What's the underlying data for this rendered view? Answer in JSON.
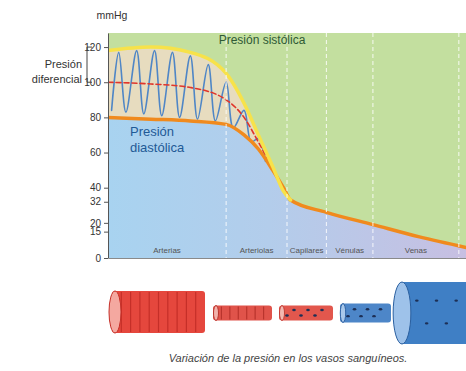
{
  "chart_data": {
    "type": "area",
    "title": "Variación de la presión en los vasos sanguíneos.",
    "y_label": "mmHg",
    "x": [
      0,
      12,
      23,
      33,
      38,
      42,
      46,
      49,
      51,
      61,
      74,
      87,
      100
    ],
    "xlim": [
      0,
      100
    ],
    "ylim": [
      0,
      128
    ],
    "yticks": [
      0,
      15,
      20,
      32,
      40,
      60,
      80,
      100,
      120
    ],
    "tick_labels": "y",
    "series": [
      {
        "name": "Presión sistólica",
        "color": "#f7e24a",
        "values": [
          118,
          120,
          117,
          105,
          88,
          70,
          52,
          38,
          33,
          null,
          null,
          null,
          null
        ]
      },
      {
        "name": "Presión diastólica",
        "color": "#f08a1d",
        "values": [
          80,
          79,
          78,
          76,
          70,
          62,
          50,
          40,
          33,
          26,
          19,
          12,
          6
        ]
      },
      {
        "type": "line",
        "color": "#e0352b",
        "line_style": "dashed",
        "values": [
          100,
          99,
          97,
          90,
          80,
          66,
          51,
          null,
          null,
          null,
          null,
          null,
          null
        ]
      },
      {
        "type": "line",
        "color": "#4f86c6",
        "x": [
          1,
          3,
          5,
          8,
          10,
          13,
          15,
          18,
          20,
          23,
          25,
          28,
          30,
          33,
          35,
          38,
          40,
          42,
          44
        ],
        "values": [
          84,
          117,
          83,
          118,
          82,
          118,
          81,
          117,
          80,
          115,
          79,
          110,
          78,
          100,
          74,
          84,
          66,
          68,
          55
        ]
      }
    ],
    "regions": [
      {
        "label": "Arterias",
        "start": 0,
        "end": 33
      },
      {
        "label": "Arteriolas",
        "start": 33,
        "end": 50
      },
      {
        "label": "Capilares",
        "start": 50,
        "end": 61
      },
      {
        "label": "Vénulas",
        "start": 61,
        "end": 74
      },
      {
        "label": "Venas",
        "start": 74,
        "end": 98
      }
    ],
    "annotations": [
      {
        "text": "Presión diferencial",
        "range": [
          100,
          120
        ]
      }
    ]
  }
}
